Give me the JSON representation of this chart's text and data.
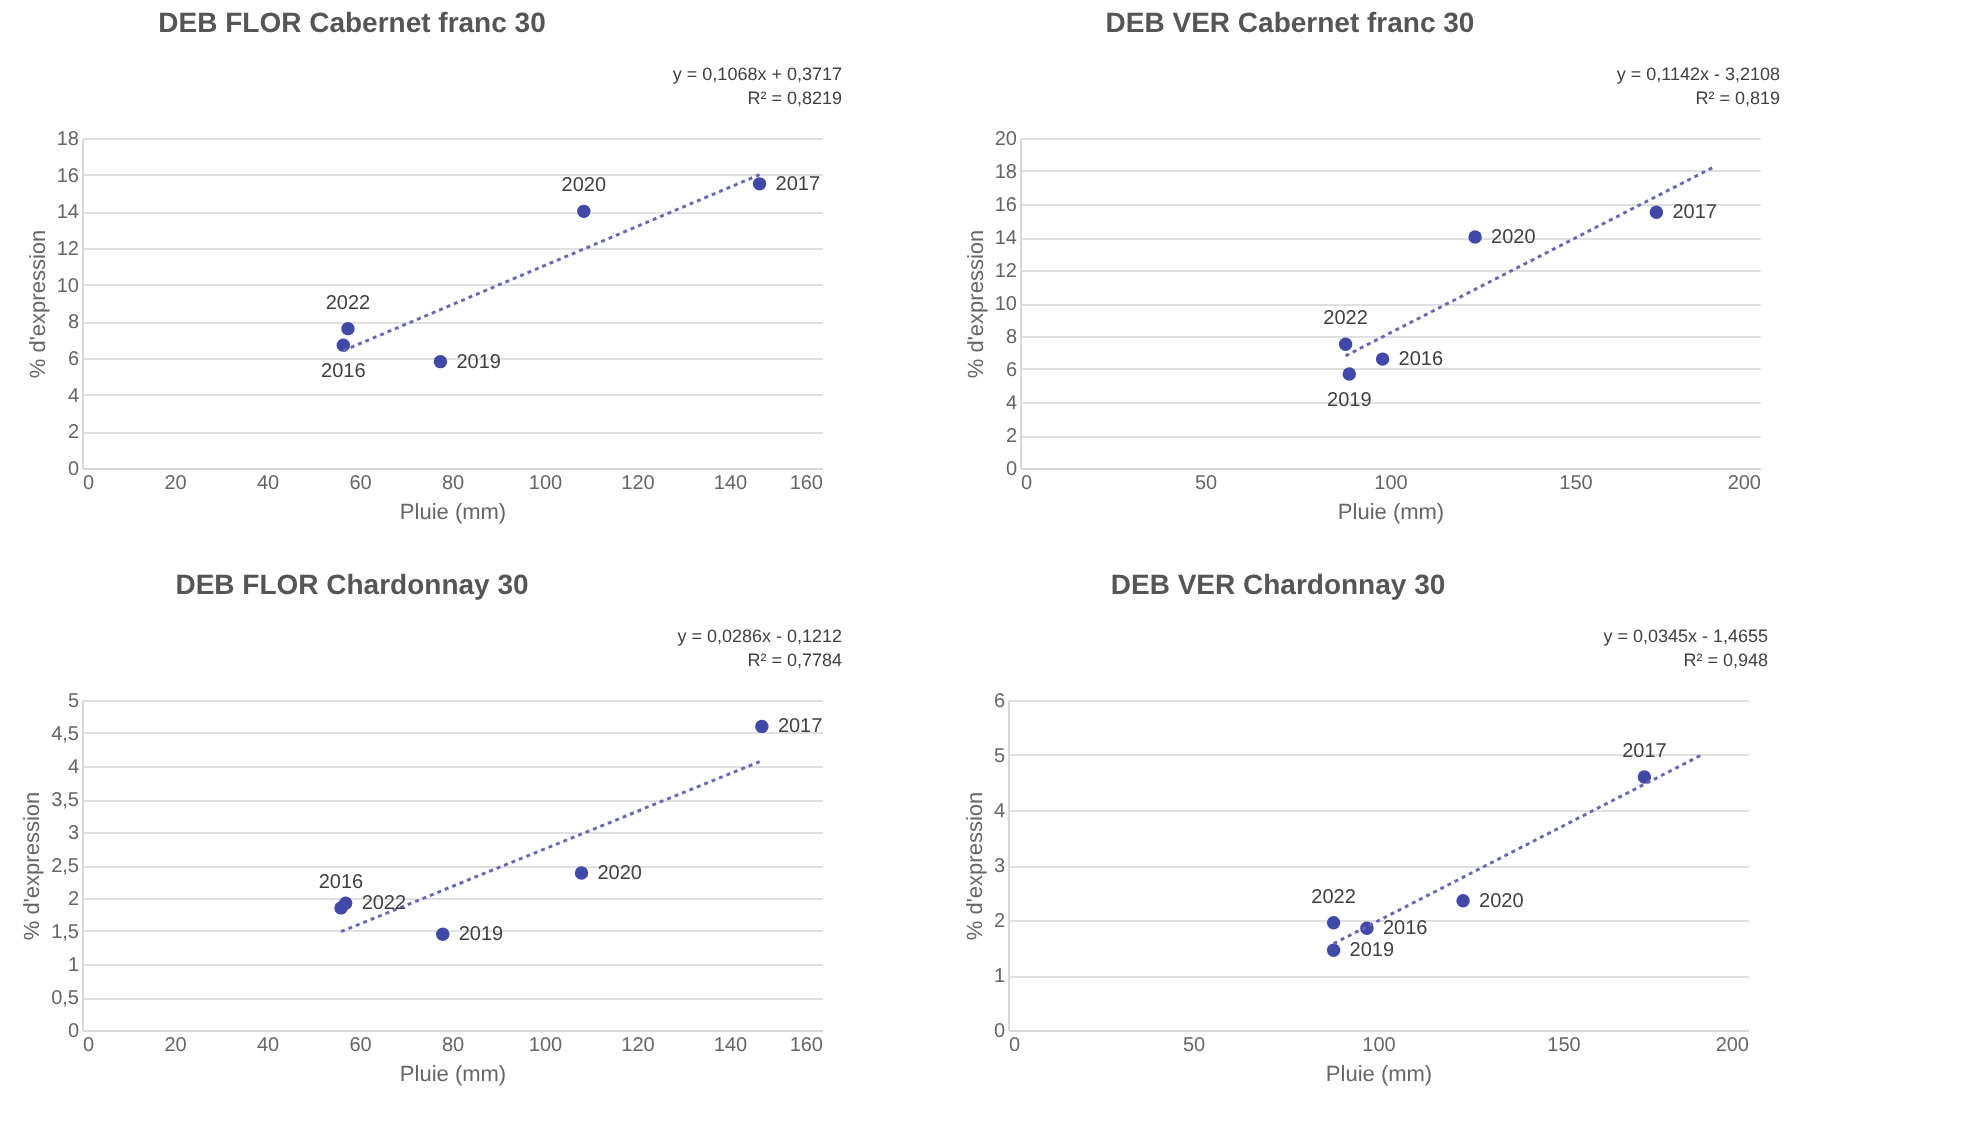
{
  "chart_data": [
    {
      "type": "scatter",
      "title": "DEB FLOR Cabernet franc 30",
      "xlabel": "Pluie (mm)",
      "ylabel": "% d'expression",
      "xlim": [
        0,
        160
      ],
      "ylim": [
        0,
        18
      ],
      "xticks": [
        0,
        20,
        40,
        60,
        80,
        100,
        120,
        140,
        160
      ],
      "yticks": [
        0,
        2,
        4,
        6,
        8,
        10,
        12,
        14,
        16,
        18
      ],
      "grid": "y",
      "series": [
        {
          "marker": "circle",
          "color": "#4048a8",
          "x": [
            57.5,
            56.5,
            77.5,
            108.5,
            146.5
          ],
          "values": [
            7.6,
            6.7,
            5.8,
            14,
            15.5
          ]
        },
        {
          "type": "line",
          "line_style": "dotted",
          "color": "#6868b0",
          "x": [
            56.5,
            146.5
          ],
          "values": [
            6.4,
            16.0
          ]
        }
      ],
      "annotations": [
        "y = 0,1068x + 0,3717",
        "R² = 0,8219",
        {
          "text": "2022",
          "x": 57.5,
          "y": 7.6
        },
        {
          "text": "2016",
          "x": 56.5,
          "y": 6.7
        },
        {
          "text": "2019",
          "x": 77.5,
          "y": 5.8
        },
        {
          "text": "2020",
          "x": 108.5,
          "y": 14
        },
        {
          "text": "2017",
          "x": 146.5,
          "y": 15.5
        }
      ]
    },
    {
      "type": "scatter",
      "title": "DEB  VER Cabernet franc 30",
      "xlabel": "Pluie (mm)",
      "ylabel": "% d'expression",
      "xlim": [
        0,
        200
      ],
      "ylim": [
        0,
        20
      ],
      "xticks": [
        0,
        50,
        100,
        150,
        200
      ],
      "yticks": [
        0,
        2,
        4,
        6,
        8,
        10,
        12,
        14,
        16,
        18,
        20
      ],
      "grid": "y",
      "series": [
        {
          "marker": "circle",
          "color": "#4048a8",
          "x": [
            88,
            89,
            98,
            123,
            172
          ],
          "values": [
            7.5,
            5.7,
            6.6,
            14,
            15.5
          ]
        },
        {
          "type": "line",
          "line_style": "dotted",
          "color": "#6868b0",
          "x": [
            88,
            188
          ],
          "values": [
            6.8,
            18.3
          ]
        }
      ],
      "annotations": [
        "y = 0,1142x - 3,2108",
        "R² = 0,819",
        {
          "text": "2022",
          "x": 88,
          "y": 7.5
        },
        {
          "text": "2019",
          "x": 89,
          "y": 5.7
        },
        {
          "text": "2016",
          "x": 98,
          "y": 6.6
        },
        {
          "text": "2020",
          "x": 123,
          "y": 14
        },
        {
          "text": "2017",
          "x": 172,
          "y": 15.5
        }
      ]
    },
    {
      "type": "scatter",
      "title": "DEB FLOR Chardonnay 30",
      "xlabel": "Pluie (mm)",
      "ylabel": "% d'expression",
      "xlim": [
        0,
        160
      ],
      "ylim": [
        0,
        5
      ],
      "xticks": [
        0,
        20,
        40,
        60,
        80,
        100,
        120,
        140,
        160
      ],
      "yticks": [
        0,
        {
          "value": 0.5,
          "label": "0,5"
        },
        1,
        {
          "value": 1.5,
          "label": "1,5"
        },
        2,
        {
          "value": 2.5,
          "label": "2,5"
        },
        3,
        {
          "value": 3.5,
          "label": "3,5"
        },
        4,
        {
          "value": 4.5,
          "label": "4,5"
        },
        5
      ],
      "grid": "y",
      "series": [
        {
          "marker": "circle",
          "color": "#4048a8",
          "x": [
            56,
            57,
            78,
            108,
            147
          ],
          "values": [
            1.85,
            1.92,
            1.45,
            2.38,
            4.6
          ]
        },
        {
          "type": "line",
          "line_style": "dotted",
          "color": "#6868b0",
          "x": [
            56,
            147
          ],
          "values": [
            1.49,
            4.08
          ]
        }
      ],
      "annotations": [
        "y = 0,0286x - 0,1212",
        "R² = 0,7784",
        {
          "text": "2016",
          "x": 56,
          "y": 1.85
        },
        {
          "text": "2022",
          "x": 57,
          "y": 1.92
        },
        {
          "text": "2019",
          "x": 78,
          "y": 1.45
        },
        {
          "text": "2020",
          "x": 108,
          "y": 2.38
        },
        {
          "text": "2017",
          "x": 147,
          "y": 4.6
        }
      ]
    },
    {
      "type": "scatter",
      "title": "DEB VER Chardonnay 30",
      "xlabel": "Pluie (mm)",
      "ylabel": "% d'expression",
      "xlim": [
        0,
        200
      ],
      "ylim": [
        0,
        6
      ],
      "xticks": [
        0,
        50,
        100,
        150,
        200
      ],
      "yticks": [
        0,
        1,
        2,
        3,
        4,
        5,
        6
      ],
      "grid": "y",
      "series": [
        {
          "marker": "circle",
          "color": "#4048a8",
          "x": [
            88,
            88,
            97,
            123,
            172
          ],
          "values": [
            1.95,
            1.45,
            1.85,
            2.35,
            4.6
          ]
        },
        {
          "type": "line",
          "line_style": "dotted",
          "color": "#6868b0",
          "x": [
            88,
            188
          ],
          "values": [
            1.57,
            5.02
          ]
        }
      ],
      "annotations": [
        "y = 0,0345x - 1,4655",
        "R² = 0,948",
        {
          "text": "2022",
          "x": 88,
          "y": 1.95
        },
        {
          "text": "2019",
          "x": 88,
          "y": 1.45
        },
        {
          "text": "2016",
          "x": 97,
          "y": 1.85
        },
        {
          "text": "2020",
          "x": 123,
          "y": 2.35
        },
        {
          "text": "2017",
          "x": 172,
          "y": 4.6
        }
      ]
    }
  ]
}
